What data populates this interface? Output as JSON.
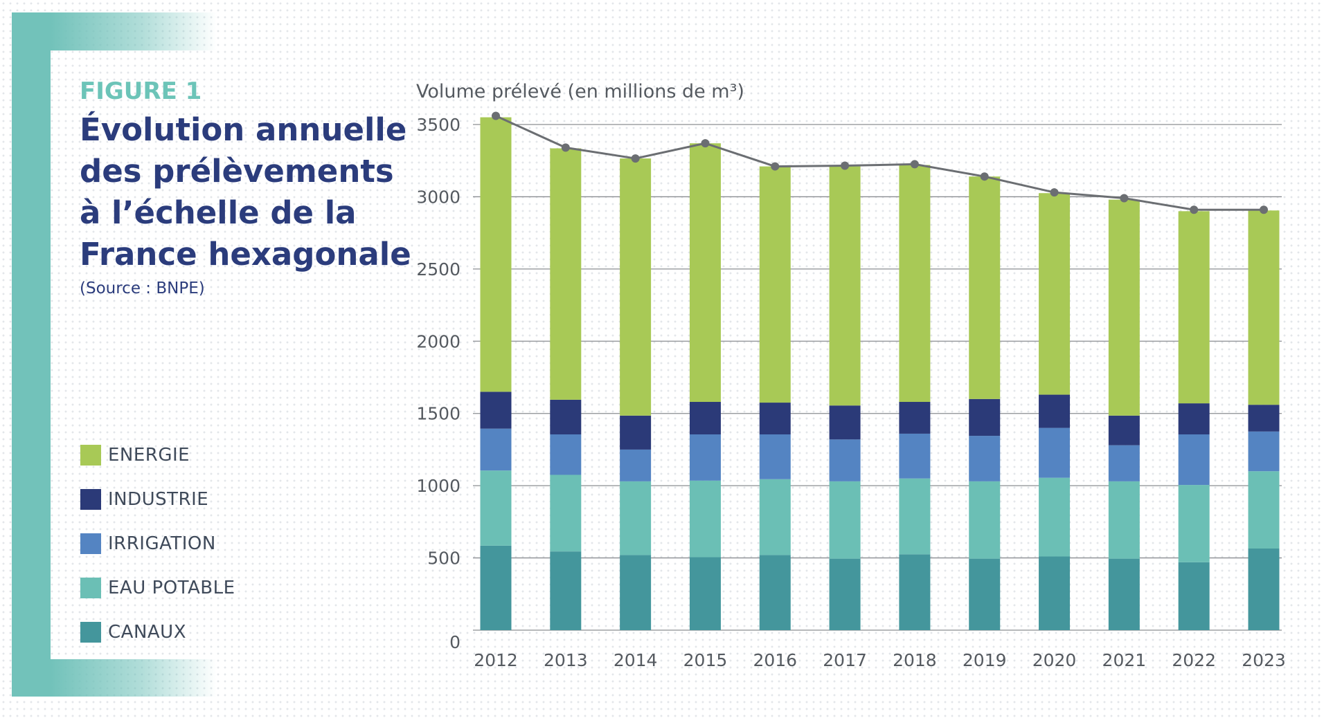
{
  "figure_label": "FIGURE 1",
  "title": "Évolution annuelle des prélèvements à l’échelle de la France hexagonale",
  "source": "(Source : BNPE)",
  "chart_data": {
    "type": "bar",
    "stacked": true,
    "ylabel": "Volume prélevé (en millions de m³)",
    "ylim": [
      0,
      3500
    ],
    "yticks": [
      0,
      500,
      1000,
      1500,
      2000,
      2500,
      3000,
      3500
    ],
    "grid": true,
    "legend_placement": "left",
    "categories": [
      "2012",
      "2013",
      "2014",
      "2015",
      "2016",
      "2017",
      "2018",
      "2019",
      "2020",
      "2021",
      "2022",
      "2023"
    ],
    "series": [
      {
        "name": "CANAUX",
        "color": "#44969c",
        "values": [
          585,
          545,
          520,
          505,
          520,
          495,
          525,
          495,
          510,
          495,
          470,
          565
        ]
      },
      {
        "name": "EAU POTABLE",
        "color": "#6bbfb5",
        "values": [
          520,
          530,
          510,
          530,
          525,
          535,
          525,
          535,
          545,
          535,
          535,
          535
        ]
      },
      {
        "name": "IRRIGATION",
        "color": "#5484c2",
        "values": [
          290,
          280,
          220,
          320,
          310,
          290,
          310,
          315,
          345,
          250,
          350,
          275
        ]
      },
      {
        "name": "INDUSTRIE",
        "color": "#2b3a78",
        "values": [
          255,
          240,
          235,
          225,
          220,
          235,
          220,
          255,
          230,
          205,
          215,
          185
        ]
      },
      {
        "name": "ENERGIE",
        "color": "#a8c956",
        "values": [
          1900,
          1740,
          1780,
          1790,
          1635,
          1655,
          1640,
          1540,
          1395,
          1495,
          1330,
          1345
        ]
      }
    ],
    "total_line": {
      "color": "#6b6e72",
      "values": [
        3560,
        3340,
        3265,
        3370,
        3210,
        3215,
        3225,
        3140,
        3030,
        2990,
        2910,
        2910
      ]
    },
    "legend_order": [
      "ENERGIE",
      "INDUSTRIE",
      "IRRIGATION",
      "EAU POTABLE",
      "CANAUX"
    ]
  }
}
